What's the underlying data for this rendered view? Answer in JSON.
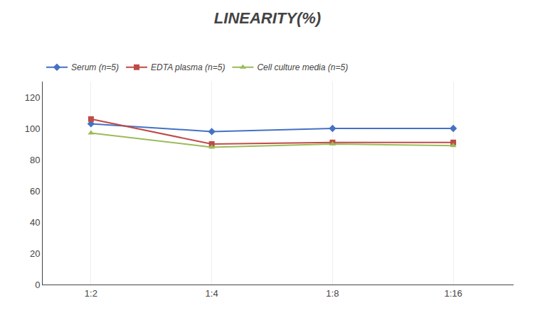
{
  "chart_data": {
    "type": "line",
    "title": "LINEARITY(%)",
    "categories": [
      "1:2",
      "1:4",
      "1:8",
      "1:16"
    ],
    "series": [
      {
        "name": "Serum (n=5)",
        "color": "#4472C4",
        "marker": "diamond",
        "values": [
          103,
          98,
          100,
          100
        ]
      },
      {
        "name": "EDTA plasma (n=5)",
        "color": "#BE4B48",
        "marker": "square",
        "values": [
          106,
          90,
          91,
          91
        ]
      },
      {
        "name": "Cell culture media (n=5)",
        "color": "#9BBB59",
        "marker": "triangle-up",
        "values": [
          97,
          88,
          90,
          89
        ]
      }
    ],
    "ylim": [
      0,
      130
    ],
    "yticks": [
      0,
      20,
      40,
      60,
      80,
      100,
      120
    ],
    "grid": "x",
    "legend": "top"
  }
}
